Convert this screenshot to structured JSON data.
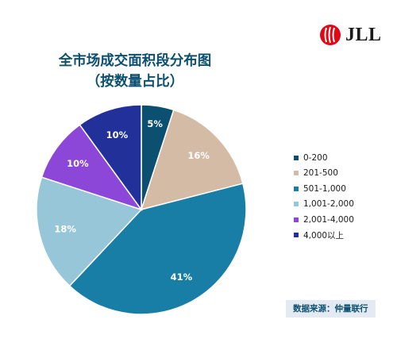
{
  "brand": {
    "name": "JLL",
    "accent": "#e30613"
  },
  "title_line1": "全市场成交面积段分布图",
  "title_line2": "（按数量占比）",
  "source_note": "数据来源：仲量联行",
  "chart_data": {
    "type": "pie",
    "categories": [
      "0-200",
      "201-500",
      "501-1,000",
      "1,001-2,000",
      "2,001-4,000",
      "4,000以上"
    ],
    "values": [
      5,
      16,
      41,
      18,
      10,
      10
    ],
    "labels": [
      "5%",
      "16%",
      "41%",
      "18%",
      "10%",
      "10%"
    ],
    "colors": [
      "#0b4f71",
      "#d4bba6",
      "#187ea5",
      "#97c6d9",
      "#8c47d9",
      "#22319a"
    ],
    "legend_position": "right",
    "start": "12 o'clock",
    "direction": "clockwise"
  }
}
